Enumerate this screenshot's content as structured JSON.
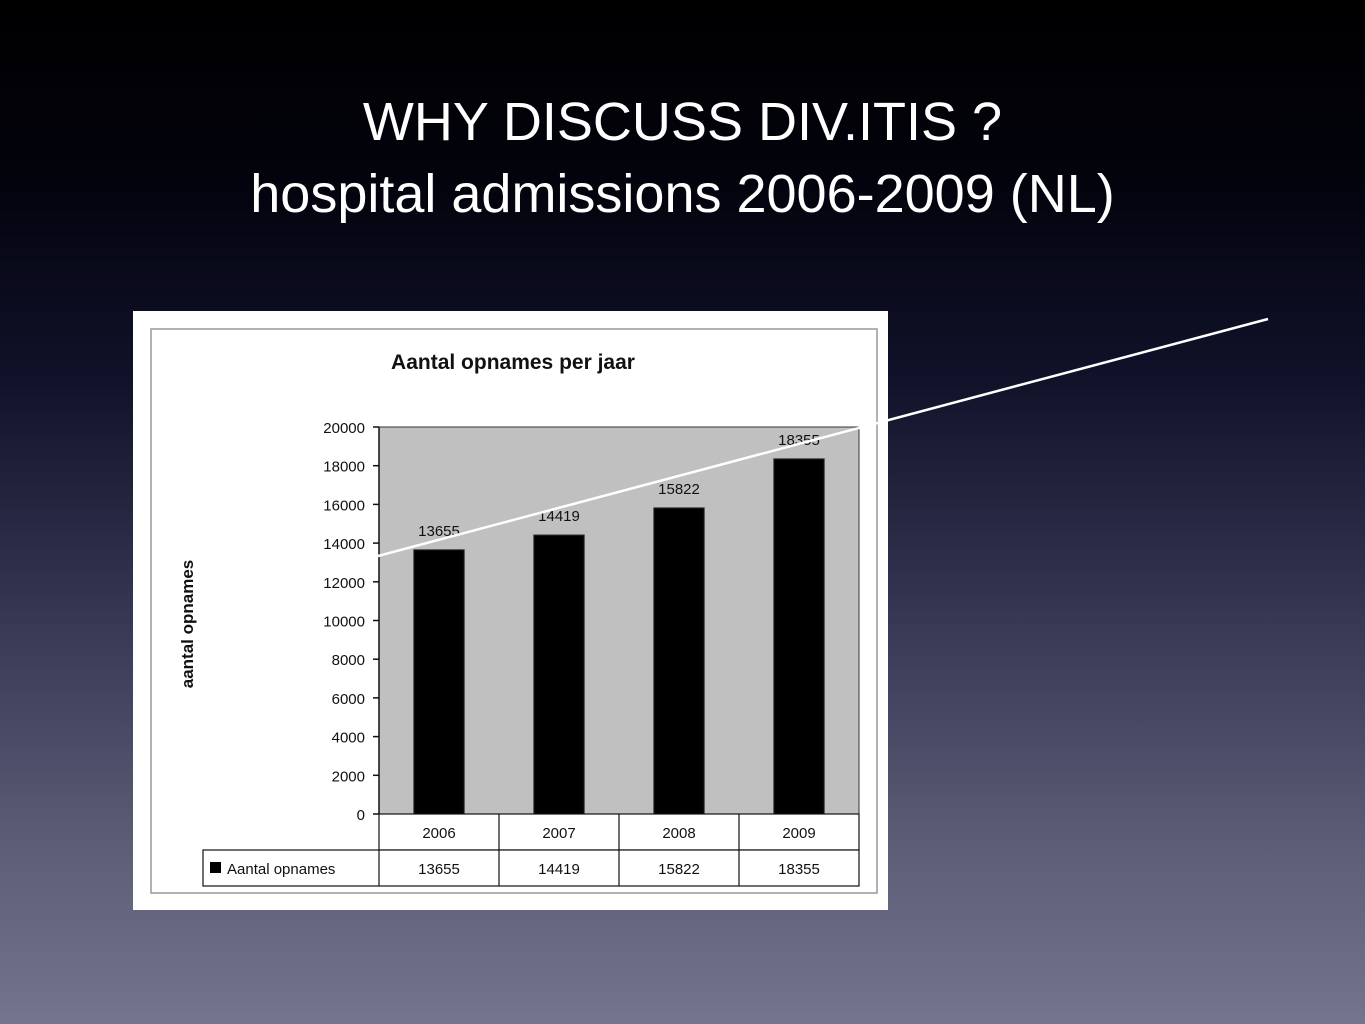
{
  "slide": {
    "title_line1": "WHY DISCUSS DIV.ITIS ?",
    "title_line2": "hospital admissions 2006-2009 (NL)"
  },
  "colors": {
    "title_text": "#ffffff",
    "plot_background": "#c0c0c0",
    "bar_fill": "#000000",
    "overlay_line": "#ffffff"
  },
  "chart_data": {
    "type": "bar",
    "title": "Aantal opnames per jaar",
    "xlabel": "",
    "ylabel": "aantal opnames",
    "categories": [
      "2006",
      "2007",
      "2008",
      "2009"
    ],
    "series": [
      {
        "name": "Aantal opnames",
        "values": [
          13655,
          14419,
          15822,
          18355
        ],
        "color": "#000000"
      }
    ],
    "data_labels": [
      "13655",
      "14419",
      "15822",
      "18355"
    ],
    "ylim": [
      0,
      20000
    ],
    "yticks": [
      0,
      2000,
      4000,
      6000,
      8000,
      10000,
      12000,
      14000,
      16000,
      18000,
      20000
    ],
    "grid": false,
    "legend": "data-table-below",
    "table": {
      "header": [
        "2006",
        "2007",
        "2008",
        "2009"
      ],
      "row_label": "Aantal opnames",
      "row_values": [
        "13655",
        "14419",
        "15822",
        "18355"
      ]
    }
  },
  "overlay": {
    "type": "trend-line",
    "color": "#ffffff"
  }
}
